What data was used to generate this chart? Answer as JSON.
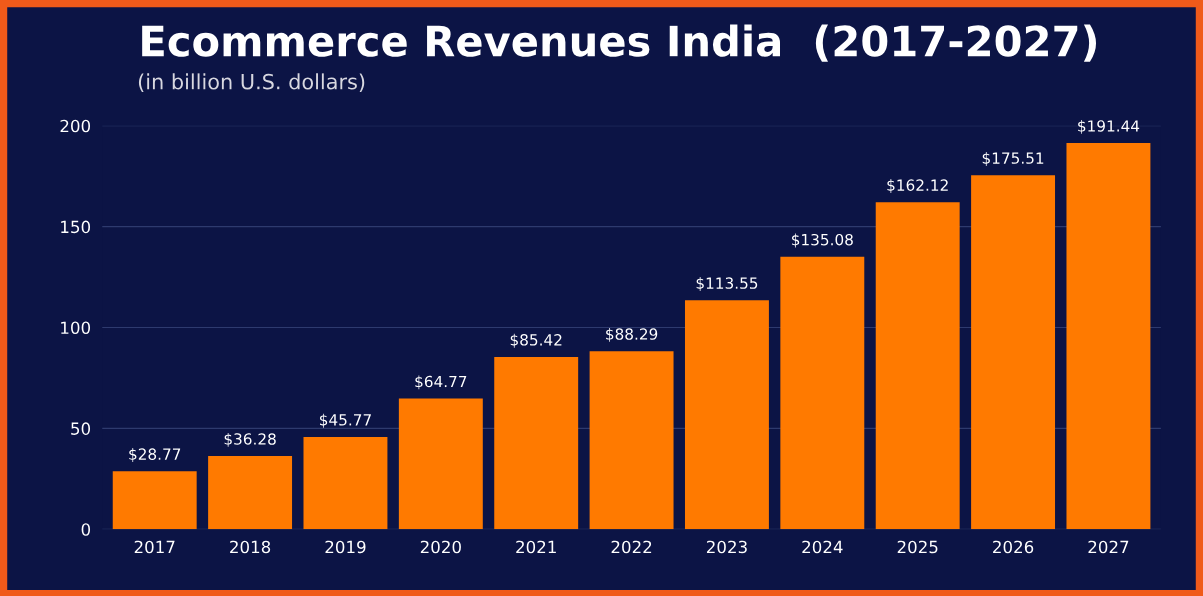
{
  "chart_data": {
    "type": "bar",
    "title": "Ecommerce Revenues India  (2017-2027)",
    "subtitle": "(in billion U.S. dollars)",
    "categories": [
      "2017",
      "2018",
      "2019",
      "2020",
      "2021",
      "2022",
      "2023",
      "2024",
      "2025",
      "2026",
      "2027"
    ],
    "values": [
      28.77,
      36.28,
      45.77,
      64.77,
      85.42,
      88.29,
      113.55,
      135.08,
      162.12,
      175.51,
      191.44
    ],
    "value_labels": [
      "$28.77",
      "$36.28",
      "$45.77",
      "$64.77",
      "$85.42",
      "$88.29",
      "$113.55",
      "$135.08",
      "$162.12",
      "$175.51",
      "$191.44"
    ],
    "color": "#ff7a00",
    "ylim": [
      0,
      200
    ],
    "yticks": [
      0,
      50,
      100,
      150,
      200
    ],
    "grid": "y",
    "legend": false
  }
}
